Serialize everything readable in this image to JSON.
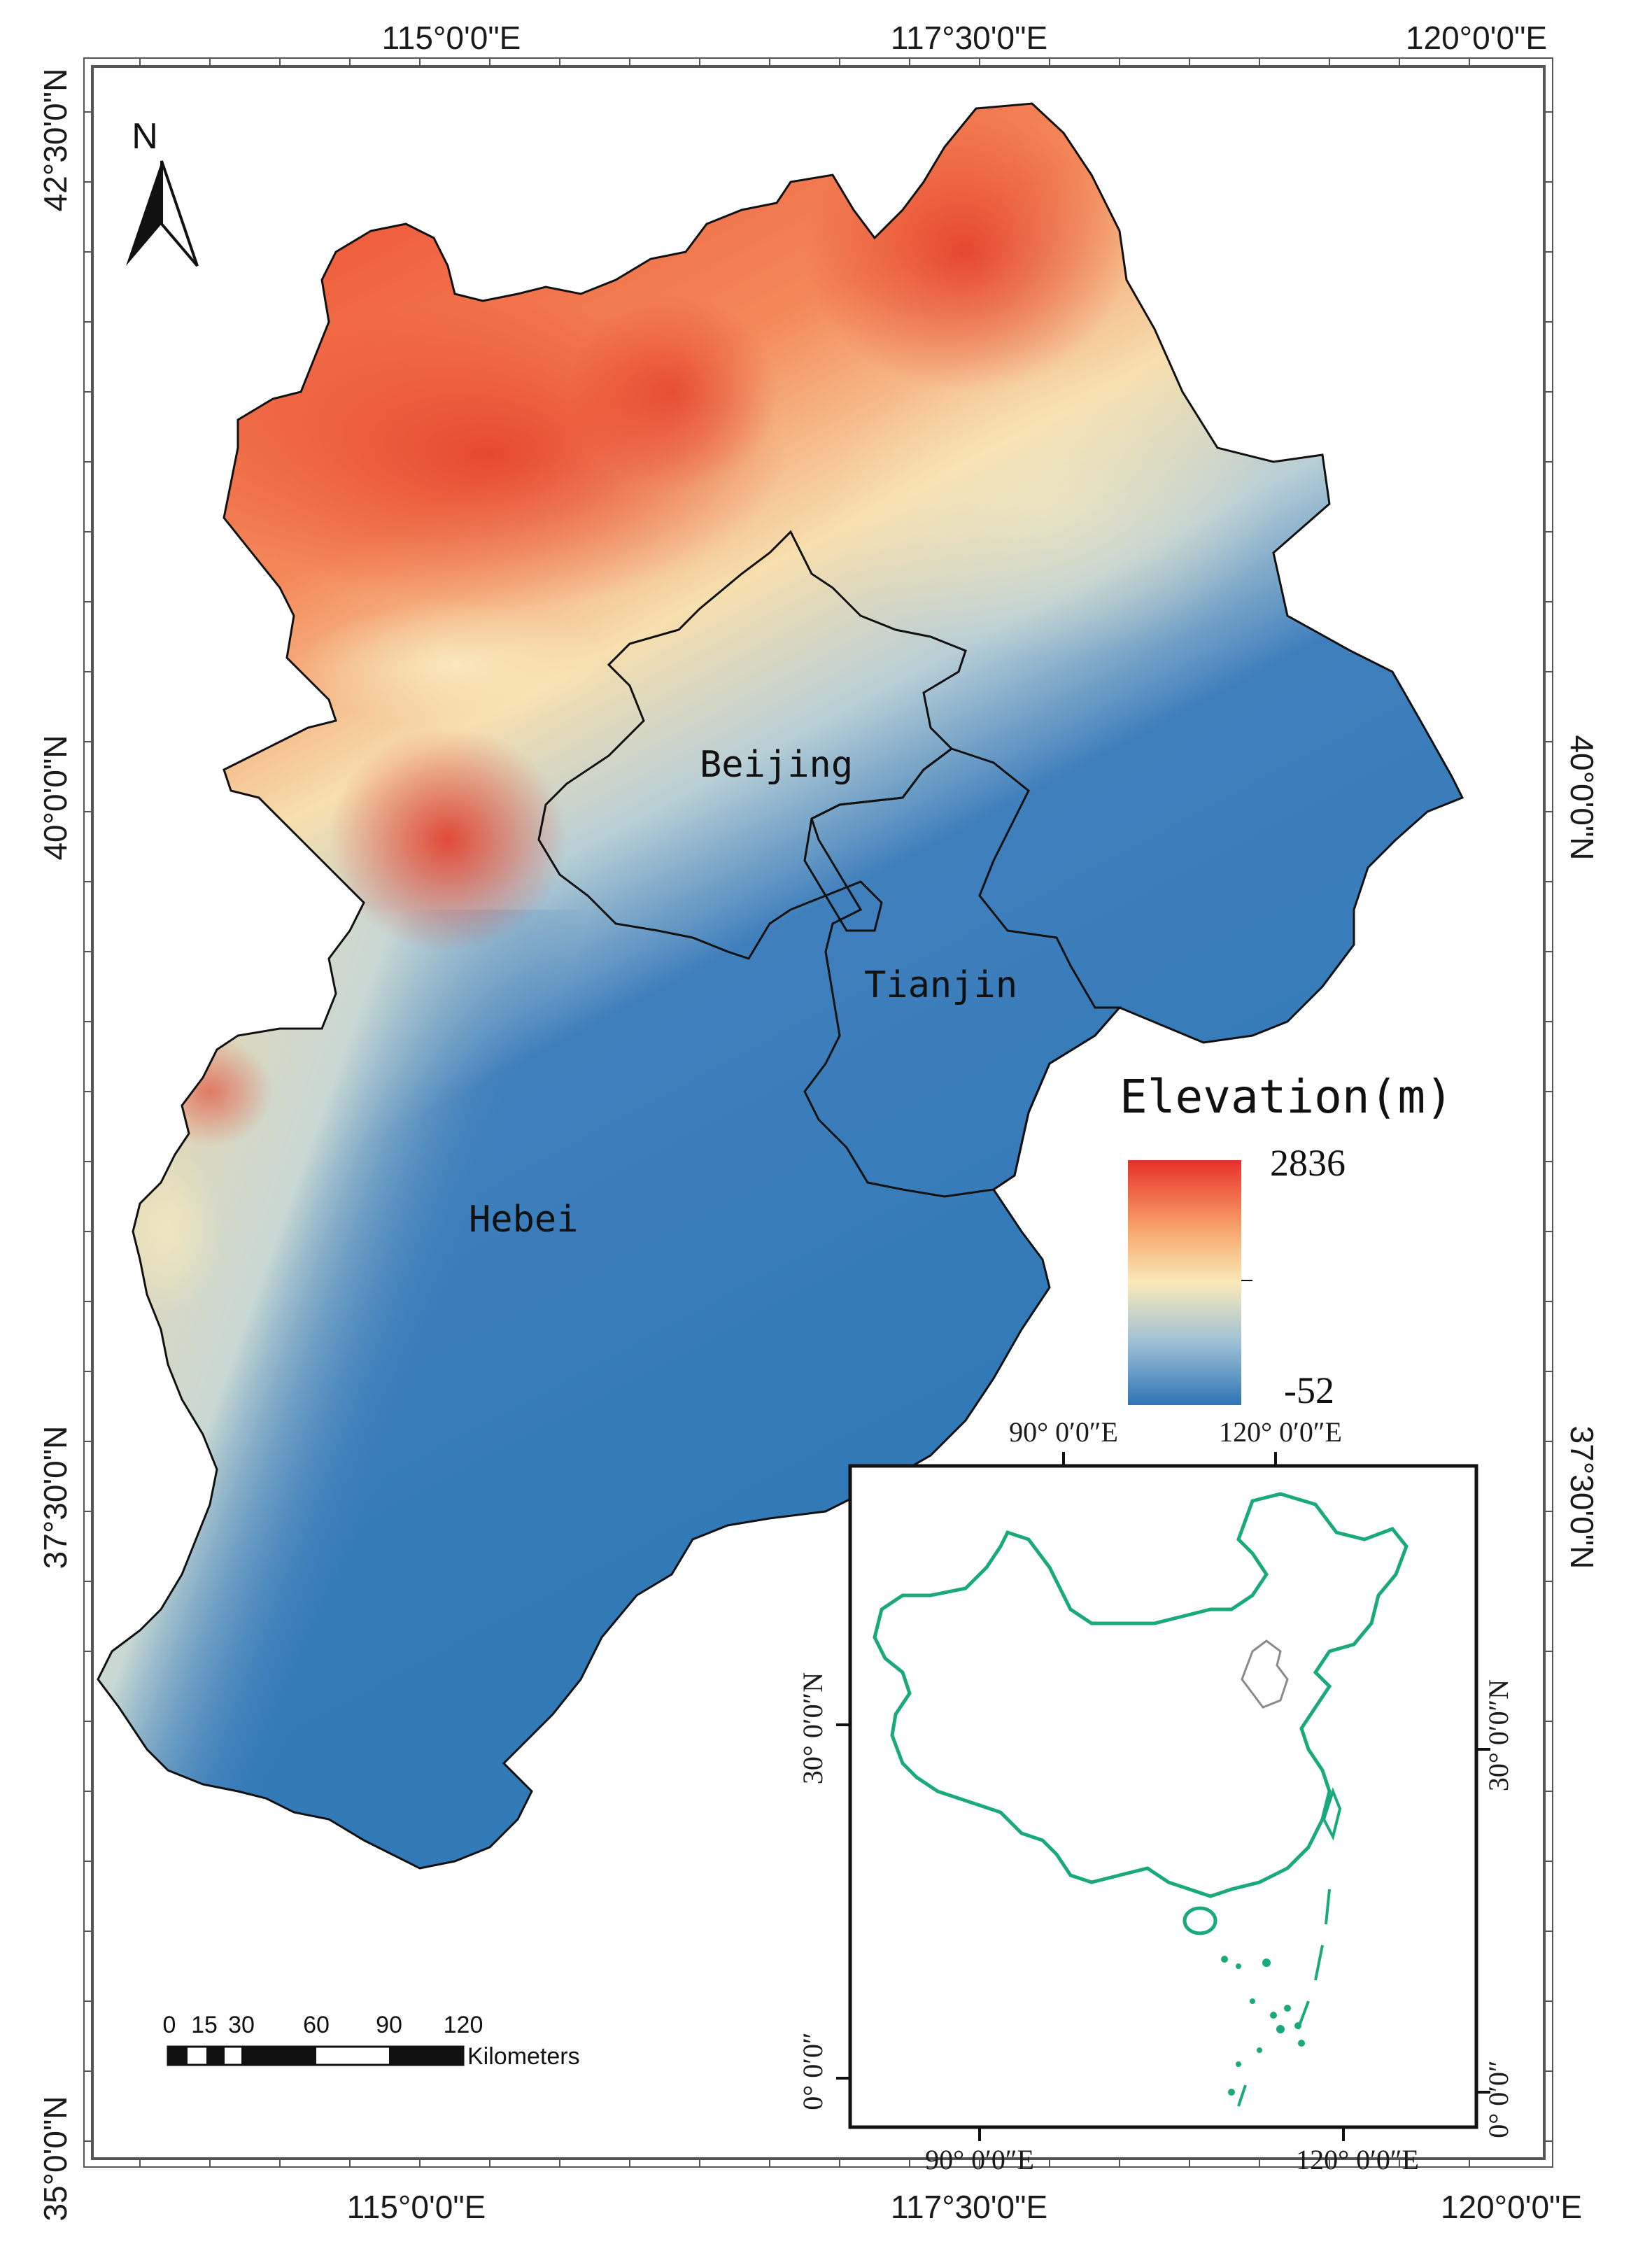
{
  "top_axis_labels": [
    "115°0'0\"E",
    "117°30'0\"E",
    "120°0'0\"E"
  ],
  "bottom_axis_labels": [
    "115°0'0\"E",
    "117°30'0\"E",
    "120°0'0\"E"
  ],
  "left_axis_labels": [
    "42°30'0\"N",
    "40°0'0\"N",
    "37°30'0\"N",
    "35°0'0\"N"
  ],
  "right_axis_labels": [
    "40°0'0\"N",
    "37°30'0\"N"
  ],
  "north_arrow": {
    "label": "N",
    "icon": "north-arrow-icon"
  },
  "places": {
    "beijing": "Beijing",
    "tianjin": "Tianjin",
    "hebei": "Hebei"
  },
  "legend": {
    "title": "Elevation(m)",
    "max": "2836",
    "min": "-52",
    "colors": [
      "#e8302a",
      "#f7a46a",
      "#f9eab8",
      "#9cbfd6",
      "#2f74b5"
    ]
  },
  "scale_bar": {
    "ticks": [
      "0",
      "15",
      "30",
      "60",
      "90",
      "120"
    ],
    "unit": "Kilometers"
  },
  "inset": {
    "top_labels": [
      "90°  0′0″E",
      "120°  0′0″E"
    ],
    "bottom_labels": [
      "90°  0′0″E",
      "120°  0′0″E"
    ],
    "left_labels": [
      "30°  0′0″N",
      "0°  0′0″"
    ],
    "right_labels": [
      "30°  0′0″N",
      "0°  0′0″"
    ],
    "country_color": "#19a97b",
    "region_color": "#8a8a8a"
  }
}
